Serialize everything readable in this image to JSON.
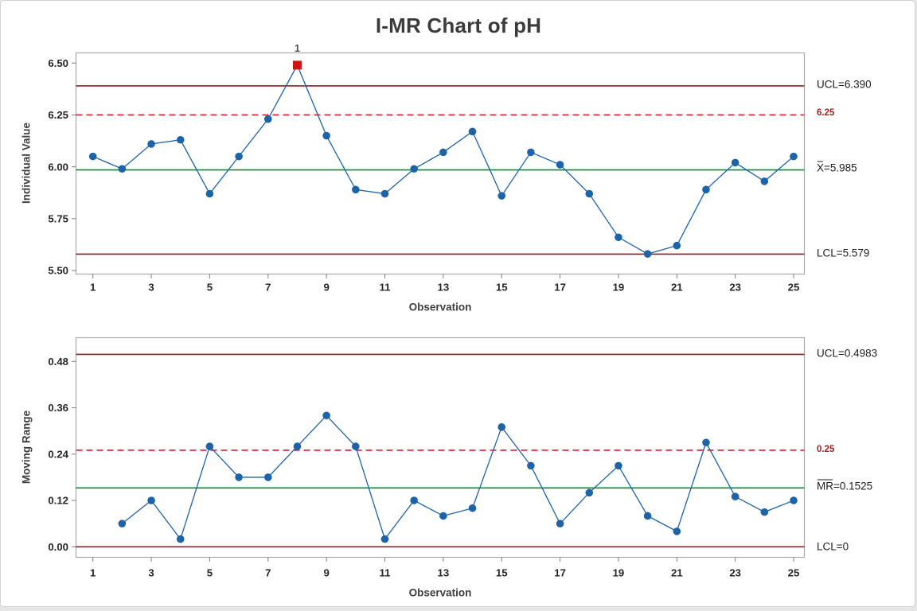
{
  "title": "I-MR Chart of pH",
  "colors": {
    "series": "#1c63a8",
    "control_limit": "#8e1e1e",
    "center_line": "#0a8a3a",
    "reference_line": "#cf2030",
    "out_of_control": "#ce1414",
    "flag_text": "#4d4d4d",
    "tick_text": "#262626",
    "panel_border": "#a8a8a8",
    "tick_mark": "#7d7d7d"
  },
  "chart_data": [
    {
      "type": "line",
      "name": "individuals",
      "ylabel": "Individual Value",
      "xlabel": "Observation",
      "x": [
        1,
        2,
        3,
        4,
        5,
        6,
        7,
        8,
        9,
        10,
        11,
        12,
        13,
        14,
        15,
        16,
        17,
        18,
        19,
        20,
        21,
        22,
        23,
        24,
        25
      ],
      "values": [
        6.05,
        5.99,
        6.11,
        6.13,
        5.87,
        6.05,
        6.23,
        6.49,
        6.15,
        5.89,
        5.87,
        5.99,
        6.07,
        6.17,
        5.86,
        6.07,
        6.01,
        5.87,
        5.66,
        5.58,
        5.62,
        5.89,
        6.02,
        5.93,
        6.05
      ],
      "ucl": 6.39,
      "center": 5.985,
      "lcl": 5.579,
      "reference": 6.25,
      "ylim": [
        5.48,
        6.55
      ],
      "grid": false,
      "yticks": [
        6.5,
        6.25,
        6.0,
        5.75,
        5.5
      ],
      "ytick_labels": [
        "6.50",
        "6.25",
        "6.00",
        "5.75",
        "5.50"
      ],
      "xticks": [
        1,
        3,
        5,
        7,
        9,
        11,
        13,
        15,
        17,
        19,
        21,
        23,
        25
      ],
      "labels": {
        "ucl": "UCL=6.390",
        "center_prefix": "X",
        "center_value": "=5.985",
        "lcl": "LCL=5.579",
        "reference": "6.25"
      },
      "out_of_control": [
        {
          "x": 8,
          "label": "1"
        }
      ]
    },
    {
      "type": "line",
      "name": "moving-range",
      "ylabel": "Moving Range",
      "xlabel": "Observation",
      "x": [
        2,
        3,
        4,
        5,
        6,
        7,
        8,
        9,
        10,
        11,
        12,
        13,
        14,
        15,
        16,
        17,
        18,
        19,
        20,
        21,
        22,
        23,
        24,
        25
      ],
      "values": [
        0.06,
        0.12,
        0.02,
        0.26,
        0.18,
        0.18,
        0.26,
        0.34,
        0.26,
        0.02,
        0.12,
        0.08,
        0.1,
        0.31,
        0.21,
        0.06,
        0.14,
        0.21,
        0.08,
        0.04,
        0.27,
        0.13,
        0.09,
        0.12
      ],
      "ucl": 0.4983,
      "center": 0.1525,
      "lcl": 0,
      "reference": 0.25,
      "ylim": [
        -0.03,
        0.54
      ],
      "grid": false,
      "yticks": [
        0.48,
        0.36,
        0.24,
        0.12,
        0.0
      ],
      "ytick_labels": [
        "0.48",
        "0.36",
        "0.24",
        "0.12",
        "0.00"
      ],
      "xticks": [
        1,
        3,
        5,
        7,
        9,
        11,
        13,
        15,
        17,
        19,
        21,
        23,
        25
      ],
      "labels": {
        "ucl": "UCL=0.4983",
        "center_prefix": "MR",
        "center_value": "=0.1525",
        "lcl": "LCL=0",
        "reference": "0.25"
      },
      "out_of_control": []
    }
  ]
}
